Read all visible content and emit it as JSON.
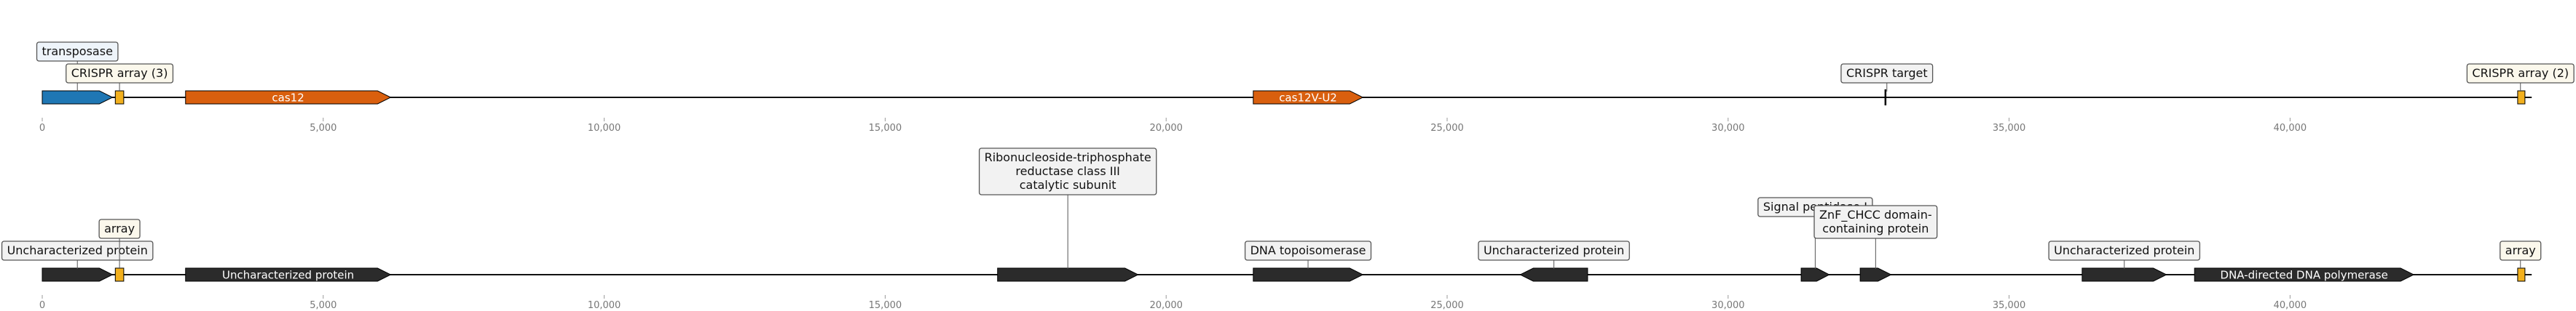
{
  "colors": {
    "transposase": "#1f77b4",
    "cas": "#d95f0e",
    "crispr_array": "#f2b01e",
    "protein": "#2b2b2b",
    "target": "#000000"
  },
  "tracks": [
    {
      "axis": {
        "ticks": [
          0,
          5000,
          10000,
          15000,
          20000,
          25000,
          30000,
          35000,
          40000
        ],
        "tick_labels": [
          "0",
          "5,000",
          "10,000",
          "15,000",
          "20,000",
          "25,000",
          "30,000",
          "35,000",
          "40,000"
        ]
      },
      "features": [
        {
          "start": 0,
          "end": 1250,
          "strand": 1,
          "kind": "gene",
          "color_key": "transposase",
          "label": "transposase",
          "label_mode": "callout",
          "box": "blue",
          "row": 2
        },
        {
          "start": 1300,
          "end": 1450,
          "strand": 1,
          "kind": "array",
          "color_key": "crispr_array",
          "label": "CRISPR array (3)",
          "label_mode": "callout",
          "box": "yellow",
          "row": 1
        },
        {
          "start": 2550,
          "end": 6200,
          "strand": 1,
          "kind": "gene",
          "color_key": "cas",
          "label": "cas12",
          "label_mode": "inside"
        },
        {
          "start": 21550,
          "end": 23500,
          "strand": 1,
          "kind": "gene",
          "color_key": "cas",
          "label": "cas12V-U2",
          "label_mode": "inside"
        },
        {
          "start": 32800,
          "end": 32850,
          "strand": 1,
          "kind": "target",
          "color_key": "target",
          "label": "CRISPR target",
          "label_mode": "callout",
          "box": "gray",
          "row": 1
        },
        {
          "start": 44050,
          "end": 44150,
          "strand": 1,
          "kind": "array",
          "color_key": "crispr_array",
          "label": "CRISPR array (2)",
          "label_mode": "callout",
          "box": "yellow",
          "row": 1
        }
      ]
    },
    {
      "axis": {
        "ticks": [
          0,
          5000,
          10000,
          15000,
          20000,
          25000,
          30000,
          35000,
          40000
        ],
        "tick_labels": [
          "0",
          "5,000",
          "10,000",
          "15,000",
          "20,000",
          "25,000",
          "30,000",
          "35,000",
          "40,000"
        ]
      },
      "features": [
        {
          "start": 0,
          "end": 1250,
          "strand": 1,
          "kind": "gene",
          "color_key": "protein",
          "label": "Uncharacterized protein",
          "label_mode": "callout",
          "box": "gray",
          "row": 1
        },
        {
          "start": 1300,
          "end": 1450,
          "strand": 1,
          "kind": "array",
          "color_key": "crispr_array",
          "label": "array",
          "label_mode": "callout",
          "box": "yellow",
          "row": 2
        },
        {
          "start": 2550,
          "end": 6200,
          "strand": 1,
          "kind": "gene",
          "color_key": "protein",
          "label": "Uncharacterized protein",
          "label_mode": "inside"
        },
        {
          "start": 17000,
          "end": 19500,
          "strand": 1,
          "kind": "gene",
          "color_key": "protein",
          "label": "Ribonucleoside-triphosphate reductase class III catalytic subunit",
          "label_lines": [
            "Ribonucleoside-triphosphate",
            "reductase class III",
            "catalytic subunit"
          ],
          "label_mode": "callout",
          "box": "gray",
          "row": 4
        },
        {
          "start": 21550,
          "end": 23500,
          "strand": 1,
          "kind": "gene",
          "color_key": "protein",
          "label": "DNA topoisomerase",
          "label_mode": "callout",
          "box": "gray",
          "row": 1
        },
        {
          "start": 26300,
          "end": 27500,
          "strand": -1,
          "kind": "gene",
          "color_key": "protein",
          "label": "Uncharacterized protein",
          "label_mode": "callout",
          "box": "gray",
          "row": 1
        },
        {
          "start": 31300,
          "end": 31800,
          "strand": 1,
          "kind": "gene",
          "color_key": "protein",
          "label": "Signal peptidase I",
          "label_mode": "callout",
          "box": "gray",
          "row": 3
        },
        {
          "start": 32350,
          "end": 32900,
          "strand": 1,
          "kind": "gene",
          "color_key": "protein",
          "label": "ZnF_CHCC domain-containing protein",
          "label_lines": [
            "ZnF_CHCC domain-",
            "containing protein"
          ],
          "label_mode": "callout",
          "box": "gray",
          "row": 2
        },
        {
          "start": 36300,
          "end": 37800,
          "strand": 1,
          "kind": "gene",
          "color_key": "protein",
          "label": "Uncharacterized protein",
          "label_mode": "callout",
          "box": "gray",
          "row": 1
        },
        {
          "start": 38300,
          "end": 42200,
          "strand": 1,
          "kind": "gene",
          "color_key": "protein",
          "label": "DNA-directed DNA polymerase",
          "label_mode": "inside"
        },
        {
          "start": 44050,
          "end": 44150,
          "strand": 1,
          "kind": "array",
          "color_key": "crispr_array",
          "label": "array",
          "label_mode": "callout",
          "box": "yellow",
          "row": 1
        }
      ]
    }
  ]
}
